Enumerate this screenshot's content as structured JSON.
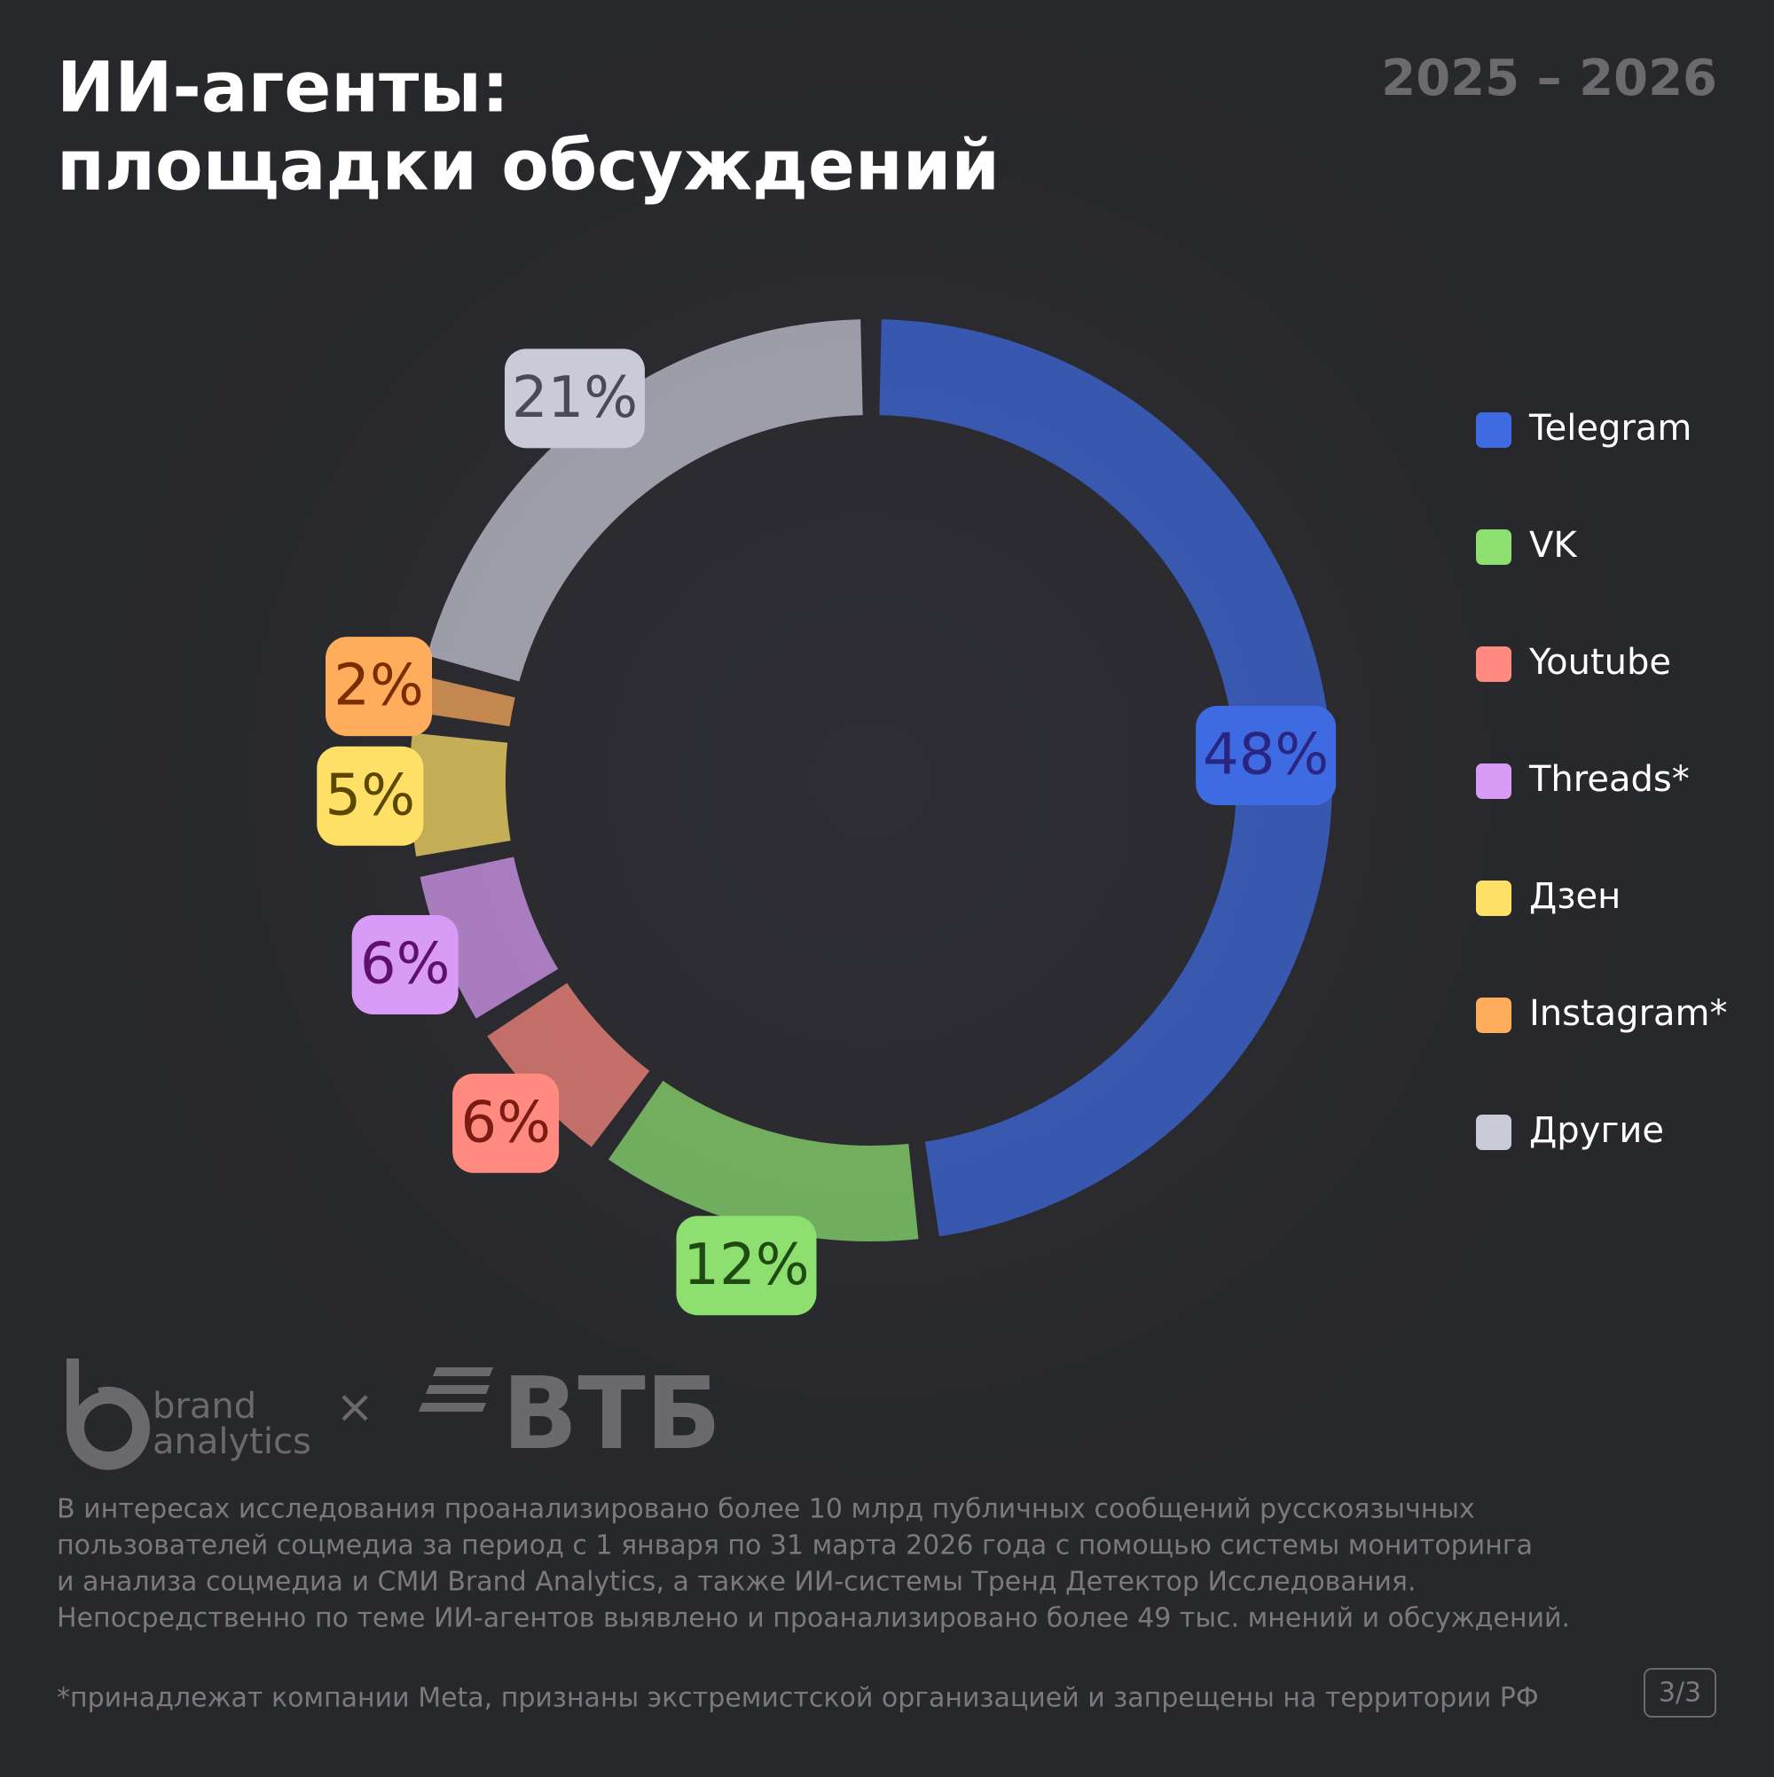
{
  "chart_data": {
    "type": "donut",
    "title": [
      "ИИ-агенты:",
      "площадки обсуждений"
    ],
    "period": "2025 – 2026",
    "categories": [
      "Telegram",
      "VK",
      "Youtube",
      "Threads*",
      "Дзен",
      "Instagram*",
      "Другие"
    ],
    "values": [
      48,
      12,
      6,
      6,
      5,
      2,
      21
    ],
    "value_labels": [
      "48%",
      "12%",
      "6%",
      "6%",
      "5%",
      "2%",
      "21%"
    ],
    "colors": [
      "#3f6be2",
      "#8de070",
      "#ff8a80",
      "#d99cf6",
      "#ffe066",
      "#ffad5c",
      "#c9cbd8"
    ]
  },
  "footer": {
    "logos": [
      "brand",
      "analytics",
      "×",
      "ВТБ"
    ],
    "note": [
      "В интересах исследования проанализировано более 10 млрд публичных сообщений русскоязычных",
      "пользователей соцмедиа за период с 1 января по 31 марта 2026 года с помощью системы мониторинга",
      "и анализа соцмедиа и СМИ Brand Analytics, а также ИИ-системы Тренд Детектор Исследования.",
      "Непосредственно по теме ИИ-агентов выявлено и проанализировано более 49 тыс. мнений и обсуждений."
    ],
    "disclaimer": "*принадлежат компании Meta, признаны экстремистской организацией и запрещены на территории РФ",
    "page": "3/3"
  }
}
